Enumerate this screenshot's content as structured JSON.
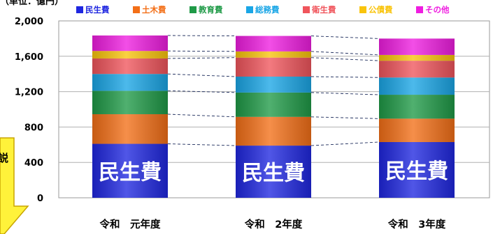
{
  "unit_label": "（単位：億円）",
  "callout_text": "説",
  "bar_label": "民生費",
  "colors": {
    "民生費": "#1f27e0",
    "土木費": "#f36f17",
    "教育費": "#1f9a47",
    "総務費": "#1aa6e6",
    "衛生費": "#f0555c",
    "公債費": "#f9c40c",
    "その他": "#ef1de0",
    "callout_fill": "#fff23a",
    "callout_stroke": "#c8a400"
  },
  "chart_data": {
    "type": "bar",
    "stacked": true,
    "categories": [
      "令和　元年度",
      "令和　2年度",
      "令和　3年度"
    ],
    "series": [
      {
        "name": "民生費",
        "values": [
          610,
          590,
          630
        ]
      },
      {
        "name": "土木費",
        "values": [
          335,
          325,
          265
        ]
      },
      {
        "name": "教育費",
        "values": [
          265,
          275,
          270
        ]
      },
      {
        "name": "総務費",
        "values": [
          190,
          180,
          195
        ]
      },
      {
        "name": "衛生費",
        "values": [
          175,
          215,
          190
        ]
      },
      {
        "name": "公債費",
        "values": [
          85,
          70,
          65
        ]
      },
      {
        "name": "その他",
        "values": [
          175,
          175,
          185
        ]
      }
    ],
    "ylim": [
      0,
      2000
    ],
    "yticks": [
      "0",
      "400",
      "800",
      "1,200",
      "1,600",
      "2,000"
    ],
    "ytick_values": [
      0,
      400,
      800,
      1200,
      1600,
      2000
    ],
    "grid": true,
    "legend_position": "top"
  }
}
